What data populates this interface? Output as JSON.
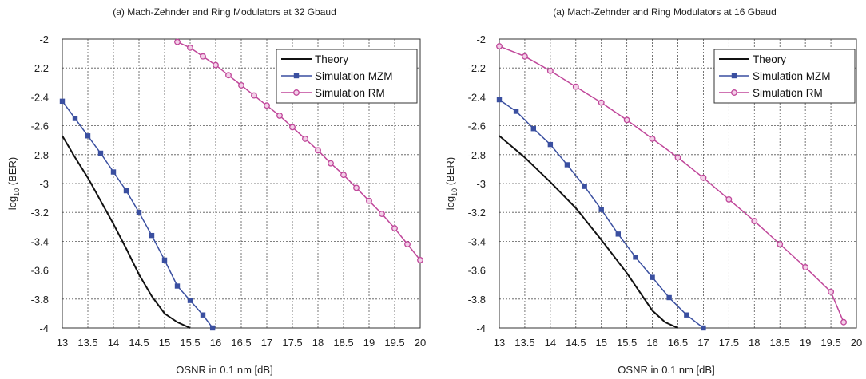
{
  "chart_data": [
    {
      "type": "line",
      "title": "(a) Mach-Zehnder and Ring Modulators at 32 Gbaud",
      "xlabel": "OSNR in 0.1 nm [dB]",
      "ylabel_main": "log",
      "ylabel_sub": "10",
      "ylabel_tail": " (BER)",
      "xlim": [
        13,
        20
      ],
      "ylim": [
        -4,
        -2
      ],
      "xticks": [
        13,
        13.5,
        14,
        14.5,
        15,
        15.5,
        16,
        16.5,
        17,
        17.5,
        18,
        18.5,
        19,
        19.5,
        20
      ],
      "yticks": [
        -2,
        -2.2,
        -2.4,
        -2.6,
        -2.8,
        -3,
        -3.2,
        -3.4,
        -3.6,
        -3.8,
        -4
      ],
      "grid": true,
      "legend_position": "top-right",
      "series": [
        {
          "name": "Theory",
          "color": "#111111",
          "marker": "none",
          "x": [
            13.0,
            13.25,
            13.5,
            13.75,
            14.0,
            14.25,
            14.5,
            14.75,
            15.0,
            15.25,
            15.5
          ],
          "y": [
            -2.67,
            -2.82,
            -2.96,
            -3.12,
            -3.28,
            -3.45,
            -3.63,
            -3.78,
            -3.9,
            -3.96,
            -4.0
          ]
        },
        {
          "name": "Simulation MZM",
          "color": "#3a4fa0",
          "marker": "square",
          "x": [
            13.0,
            13.25,
            13.5,
            13.75,
            14.0,
            14.25,
            14.5,
            14.75,
            15.0,
            15.25,
            15.5,
            15.75,
            15.94
          ],
          "y": [
            -2.43,
            -2.55,
            -2.67,
            -2.79,
            -2.92,
            -3.05,
            -3.2,
            -3.36,
            -3.53,
            -3.71,
            -3.81,
            -3.91,
            -4.0
          ]
        },
        {
          "name": "Simulation RM",
          "color": "#c0479a",
          "marker": "circle",
          "x": [
            15.25,
            15.5,
            15.75,
            16.0,
            16.25,
            16.5,
            16.75,
            17.0,
            17.25,
            17.5,
            17.75,
            18.0,
            18.25,
            18.5,
            18.75,
            19.0,
            19.25,
            19.5,
            19.75,
            20.0
          ],
          "y": [
            -2.02,
            -2.06,
            -2.12,
            -2.18,
            -2.25,
            -2.32,
            -2.39,
            -2.46,
            -2.53,
            -2.61,
            -2.69,
            -2.77,
            -2.86,
            -2.94,
            -3.03,
            -3.12,
            -3.21,
            -3.31,
            -3.42,
            -3.53
          ]
        }
      ]
    },
    {
      "type": "line",
      "title": "(a) Mach-Zehnder and Ring Modulators at 16 Gbaud",
      "xlabel": "OSNR in 0.1 nm [dB]",
      "ylabel_main": "log",
      "ylabel_sub": "10",
      "ylabel_tail": " (BER)",
      "xlim": [
        13,
        20
      ],
      "ylim": [
        -4,
        -2
      ],
      "xticks": [
        13,
        13.5,
        14,
        14.5,
        15,
        15.5,
        16,
        16.5,
        17,
        17.5,
        18,
        18.5,
        19,
        19.5,
        20
      ],
      "yticks": [
        -2,
        -2.2,
        -2.4,
        -2.6,
        -2.8,
        -3,
        -3.2,
        -3.4,
        -3.6,
        -3.8,
        -4
      ],
      "grid": true,
      "legend_position": "top-right",
      "series": [
        {
          "name": "Theory",
          "color": "#111111",
          "marker": "none",
          "x": [
            13.0,
            13.5,
            14.0,
            14.5,
            15.0,
            15.5,
            16.0,
            16.25,
            16.5
          ],
          "y": [
            -2.67,
            -2.82,
            -2.99,
            -3.17,
            -3.39,
            -3.62,
            -3.88,
            -3.96,
            -4.0
          ]
        },
        {
          "name": "Simulation MZM",
          "color": "#3a4fa0",
          "marker": "square",
          "x": [
            13.0,
            13.33,
            13.67,
            14.0,
            14.33,
            14.67,
            15.0,
            15.33,
            15.67,
            16.0,
            16.33,
            16.67,
            17.0
          ],
          "y": [
            -2.42,
            -2.5,
            -2.62,
            -2.73,
            -2.87,
            -3.02,
            -3.18,
            -3.35,
            -3.51,
            -3.65,
            -3.79,
            -3.91,
            -4.0
          ]
        },
        {
          "name": "Simulation RM",
          "color": "#c0479a",
          "marker": "circle",
          "x": [
            13.0,
            13.5,
            14.0,
            14.5,
            15.0,
            15.5,
            16.0,
            16.5,
            17.0,
            17.5,
            18.0,
            18.5,
            19.0,
            19.5,
            19.75
          ],
          "y": [
            -2.05,
            -2.12,
            -2.22,
            -2.33,
            -2.44,
            -2.56,
            -2.69,
            -2.82,
            -2.96,
            -3.11,
            -3.26,
            -3.42,
            -3.58,
            -3.75,
            -3.96
          ]
        }
      ]
    }
  ]
}
